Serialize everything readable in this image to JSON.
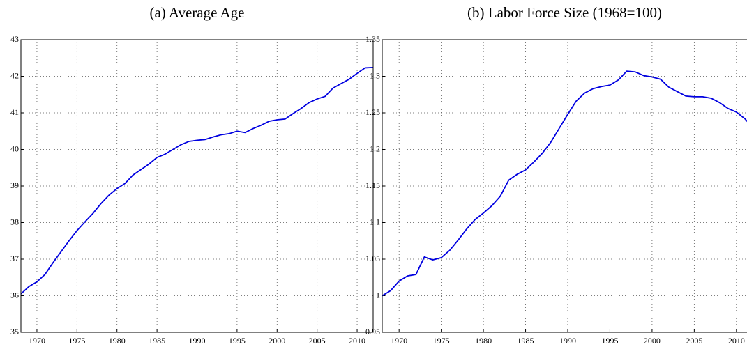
{
  "chart_data": [
    {
      "type": "line",
      "title": "(a) Average Age",
      "x": [
        1968,
        1969,
        1970,
        1971,
        1972,
        1973,
        1974,
        1975,
        1976,
        1977,
        1978,
        1979,
        1980,
        1981,
        1982,
        1983,
        1984,
        1985,
        1986,
        1987,
        1988,
        1989,
        1990,
        1991,
        1992,
        1993,
        1994,
        1995,
        1996,
        1997,
        1998,
        1999,
        2000,
        2001,
        2002,
        2003,
        2004,
        2005,
        2006,
        2007,
        2008,
        2009,
        2010,
        2011,
        2012
      ],
      "series": [
        {
          "color": "#0000e0",
          "values": [
            36.05,
            36.25,
            36.38,
            36.58,
            36.9,
            37.2,
            37.5,
            37.78,
            38.02,
            38.25,
            38.52,
            38.75,
            38.93,
            39.07,
            39.3,
            39.45,
            39.6,
            39.78,
            39.87,
            40.0,
            40.13,
            40.22,
            40.25,
            40.27,
            40.34,
            40.4,
            40.43,
            40.5,
            40.46,
            40.57,
            40.66,
            40.77,
            40.81,
            40.83,
            40.98,
            41.12,
            41.28,
            41.38,
            41.45,
            41.68,
            41.8,
            41.92,
            42.08,
            42.23,
            42.24
          ]
        }
      ],
      "xlim": [
        1968,
        2012
      ],
      "xticks": [
        1970,
        1975,
        1980,
        1985,
        1990,
        1995,
        2000,
        2005,
        2010
      ],
      "ylim": [
        35,
        43
      ],
      "yticks": [
        35,
        36,
        37,
        38,
        39,
        40,
        41,
        42,
        43
      ],
      "grid": true
    },
    {
      "type": "line",
      "title": "(b) Labor Force Size (1968=100)",
      "x": [
        1968,
        1969,
        1970,
        1971,
        1972,
        1973,
        1974,
        1975,
        1976,
        1977,
        1978,
        1979,
        1980,
        1981,
        1982,
        1983,
        1984,
        1985,
        1986,
        1987,
        1988,
        1989,
        1990,
        1991,
        1992,
        1993,
        1994,
        1995,
        1996,
        1997,
        1998,
        1999,
        2000,
        2001,
        2002,
        2003,
        2004,
        2005,
        2006,
        2007,
        2008,
        2009,
        2010,
        2011,
        2012
      ],
      "series": [
        {
          "color": "#0000e0",
          "values": [
            1.0,
            1.007,
            1.02,
            1.027,
            1.029,
            1.053,
            1.049,
            1.052,
            1.062,
            1.076,
            1.091,
            1.104,
            1.113,
            1.123,
            1.136,
            1.158,
            1.166,
            1.172,
            1.183,
            1.195,
            1.21,
            1.229,
            1.248,
            1.266,
            1.277,
            1.283,
            1.286,
            1.288,
            1.295,
            1.307,
            1.306,
            1.301,
            1.299,
            1.296,
            1.285,
            1.279,
            1.273,
            1.272,
            1.272,
            1.27,
            1.264,
            1.256,
            1.251,
            1.242,
            1.229
          ]
        }
      ],
      "xlim": [
        1968,
        2012
      ],
      "xticks": [
        1970,
        1975,
        1980,
        1985,
        1990,
        1995,
        2000,
        2005,
        2010
      ],
      "ylim": [
        0.95,
        1.35
      ],
      "yticks": [
        0.95,
        1,
        1.05,
        1.1,
        1.15,
        1.2,
        1.25,
        1.3,
        1.35
      ],
      "grid": true
    }
  ]
}
